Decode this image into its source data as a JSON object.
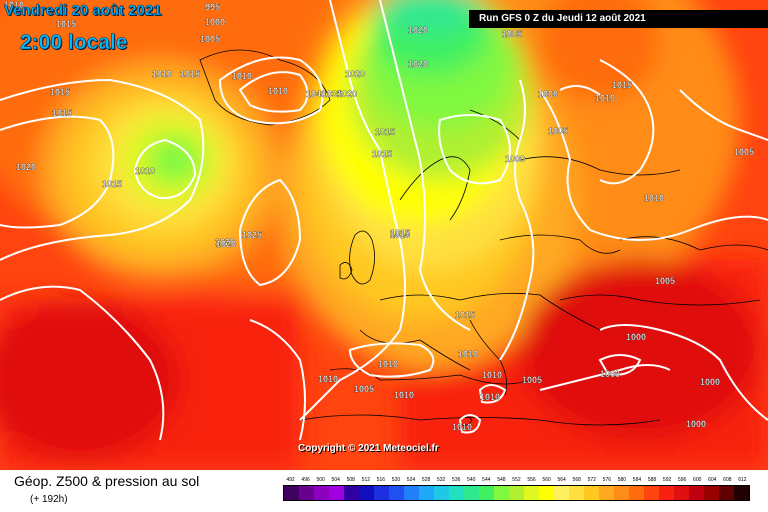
{
  "header": {
    "date": "Vendredi 20 août 2021",
    "local_time": "2:00 locale",
    "run_info": "Run GFS 0 Z du Jeudi 12 août 2021"
  },
  "copyright": "Copyright © 2021 Meteociel.fr",
  "legend": {
    "title": "Géop. Z500 & pression au sol",
    "subtitle": "(+ 192h)",
    "levels": [
      "492",
      "496",
      "500",
      "504",
      "508",
      "512",
      "516",
      "520",
      "524",
      "528",
      "532",
      "536",
      "540",
      "544",
      "548",
      "552",
      "556",
      "560",
      "564",
      "568",
      "572",
      "576",
      "580",
      "584",
      "588",
      "592",
      "596",
      "600",
      "604",
      "608",
      "612"
    ],
    "colors": [
      "#400060",
      "#6a0090",
      "#8c00c0",
      "#a000e0",
      "#3000a0",
      "#1010c0",
      "#1c30e0",
      "#2050f0",
      "#2080f8",
      "#20a8f8",
      "#20c8e8",
      "#20e0c0",
      "#30e890",
      "#40f060",
      "#80f840",
      "#b0f030",
      "#e0f820",
      "#ffff00",
      "#fff060",
      "#ffe040",
      "#ffc820",
      "#ffa820",
      "#ff8c18",
      "#ff6c10",
      "#ff4410",
      "#f82010",
      "#e01010",
      "#c00010",
      "#980000",
      "#600000",
      "#200000"
    ]
  },
  "isobar_labels": [
    {
      "text": "1010"
    },
    {
      "text": "1015"
    },
    {
      "text": "995"
    },
    {
      "text": "1000"
    },
    {
      "text": "1005"
    },
    {
      "text": "1010"
    },
    {
      "text": "1015"
    },
    {
      "text": "1010"
    },
    {
      "text": "1020"
    },
    {
      "text": "1020"
    },
    {
      "text": "1005"
    },
    {
      "text": "1020"
    },
    {
      "text": "1020"
    },
    {
      "text": "1015"
    },
    {
      "text": "1015"
    },
    {
      "text": "1020"
    },
    {
      "text": "1015"
    },
    {
      "text": "1010"
    },
    {
      "text": "1020"
    },
    {
      "text": "1025"
    },
    {
      "text": "1010"
    },
    {
      "text": "1040"
    },
    {
      "text": "1035"
    },
    {
      "text": "1020"
    },
    {
      "text": "1015"
    },
    {
      "text": "1015"
    },
    {
      "text": "1000"
    },
    {
      "text": "1010"
    },
    {
      "text": "1005"
    },
    {
      "text": "1015"
    },
    {
      "text": "1000"
    },
    {
      "text": "1010"
    },
    {
      "text": "1005"
    },
    {
      "text": "1015"
    },
    {
      "text": "1010"
    },
    {
      "text": "1005"
    },
    {
      "text": "1015"
    },
    {
      "text": "1010"
    },
    {
      "text": "1010"
    },
    {
      "text": "1010"
    },
    {
      "text": "1000"
    },
    {
      "text": "1000"
    },
    {
      "text": "1000"
    },
    {
      "text": "1010"
    },
    {
      "text": "1005"
    },
    {
      "text": "1010"
    },
    {
      "text": "1005"
    },
    {
      "text": "1010"
    },
    {
      "text": "1010"
    },
    {
      "text": "1000"
    }
  ]
}
